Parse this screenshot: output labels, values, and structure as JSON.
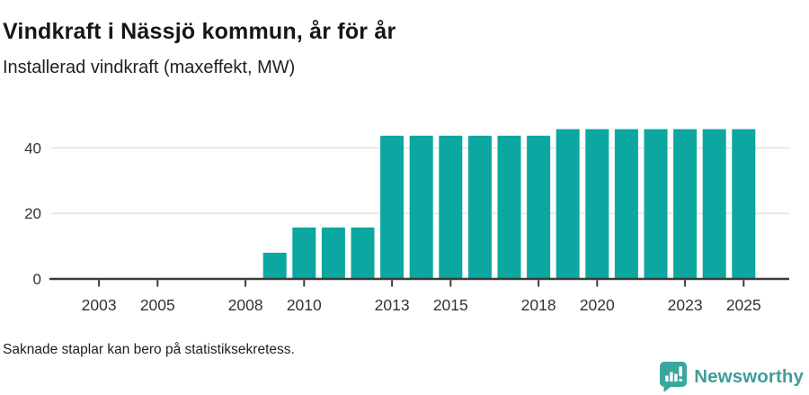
{
  "header": {
    "title": "Vindkraft i Nässjö kommun, år för år",
    "subtitle": "Installerad vindkraft (maxeffekt, MW)"
  },
  "footer": {
    "note": "Saknade staplar kan bero på statistiksekretess.",
    "brand": {
      "name": "Newsworthy",
      "icon": "bar-chart-speech-bubble-icon"
    }
  },
  "colors": {
    "bar": "#0ba7a0",
    "grid": "#e5e5e5",
    "axis": "#3b3b3b",
    "tick_label": "#333333",
    "brand_text": "#3d9e99",
    "brand_bubble": "#3aa79f",
    "brand_glyph": "#ffffff"
  },
  "chart_data": {
    "type": "bar",
    "title": "Vindkraft i Nässjö kommun, år för år",
    "subtitle": "Installerad vindkraft (maxeffekt, MW)",
    "unit": "MW",
    "x": [
      2002,
      2003,
      2004,
      2005,
      2006,
      2007,
      2008,
      2009,
      2010,
      2011,
      2012,
      2013,
      2014,
      2015,
      2016,
      2017,
      2018,
      2019,
      2020,
      2021,
      2022,
      2023,
      2024,
      2025
    ],
    "values": [
      null,
      null,
      null,
      null,
      null,
      null,
      null,
      8,
      15.7,
      15.7,
      15.7,
      43.7,
      43.7,
      43.7,
      43.7,
      43.7,
      43.7,
      45.7,
      45.7,
      45.7,
      45.7,
      45.7,
      45.7,
      45.7
    ],
    "yticks": [
      0,
      20,
      40
    ],
    "xticks": [
      2003,
      2005,
      2008,
      2010,
      2013,
      2015,
      2018,
      2020,
      2023,
      2025
    ],
    "ylim": [
      0,
      48
    ],
    "grid": "horizontal",
    "legend": "none",
    "footnote": "Saknade staplar kan bero på statistiksekretess."
  }
}
